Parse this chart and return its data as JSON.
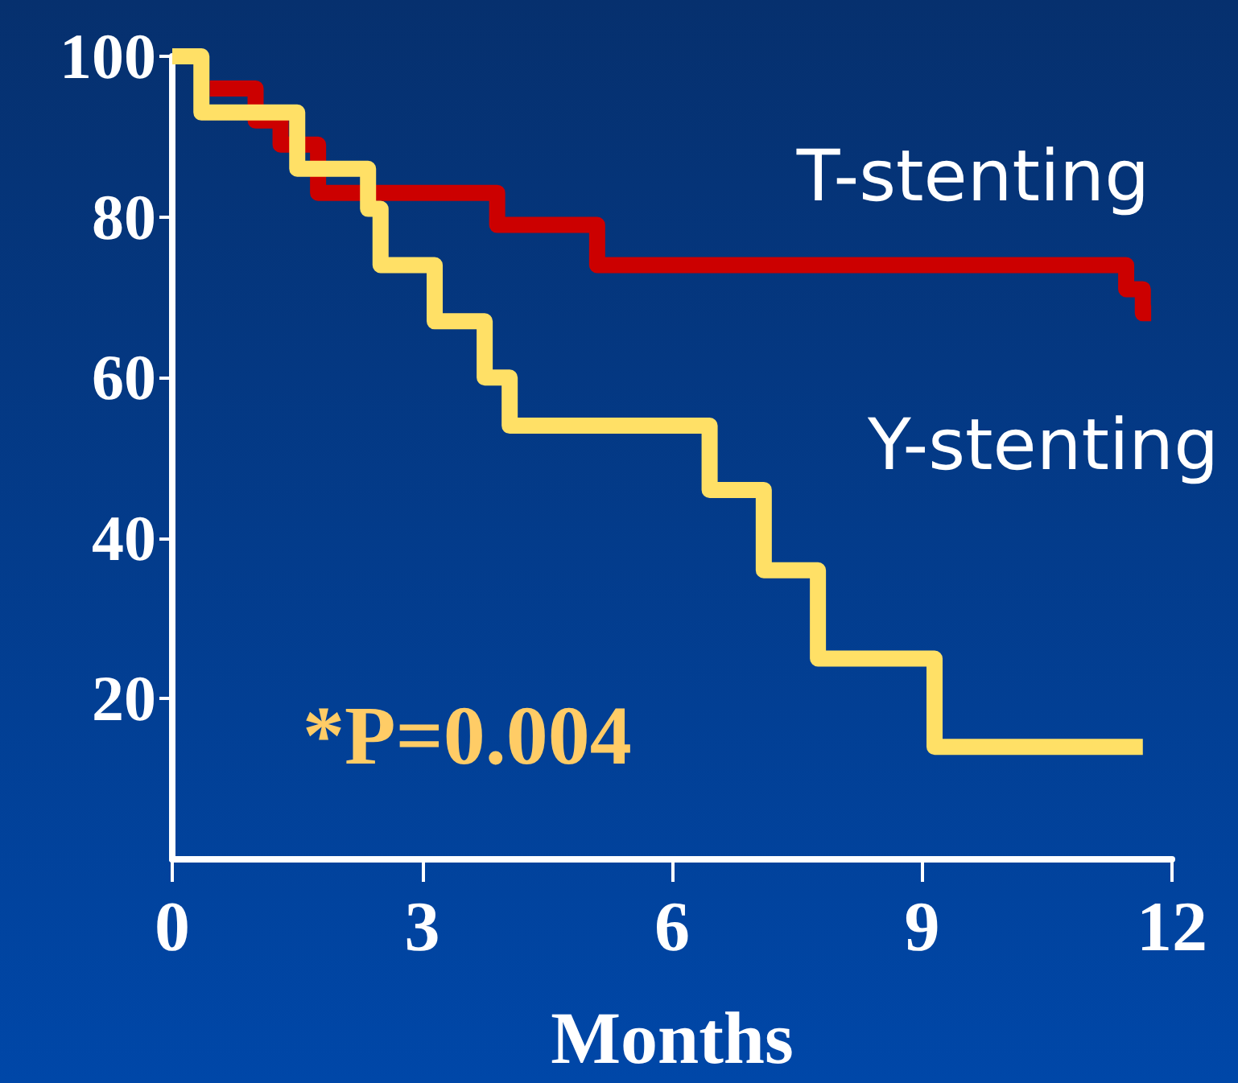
{
  "chart_data": {
    "type": "step",
    "xlabel": "Months",
    "xlim": [
      0,
      12
    ],
    "xticks": [
      0,
      3,
      6,
      9,
      12
    ],
    "ylim": [
      0,
      100
    ],
    "yticks": [
      20,
      40,
      60,
      80,
      100
    ],
    "grid": false,
    "legend": false,
    "marker": "none",
    "line_style": "solid",
    "annotations": [
      "*P=0.004"
    ],
    "series": [
      {
        "name": "T-stenting",
        "color": "#cc0000",
        "x": [
          0.45,
          1.0,
          1.3,
          1.75,
          3.9,
          5.1,
          11.45,
          11.65,
          11.75
        ],
        "values": [
          96,
          92,
          89,
          83,
          79,
          74,
          71,
          68,
          68
        ]
      },
      {
        "name": "Y-stenting",
        "color": "#ffe066",
        "x": [
          0,
          0.35,
          1.5,
          2.35,
          2.5,
          3.15,
          3.75,
          4.05,
          6.45,
          7.1,
          7.75,
          9.15,
          11.65
        ],
        "values": [
          100,
          93,
          86,
          81,
          74,
          67,
          60,
          54,
          46,
          36,
          25,
          14,
          14
        ]
      }
    ]
  }
}
